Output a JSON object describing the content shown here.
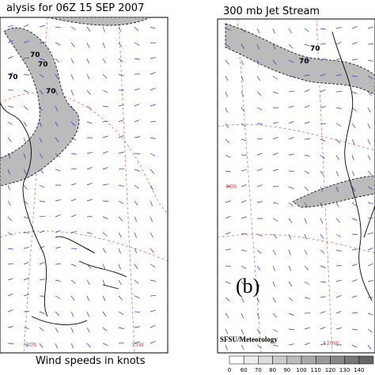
{
  "left_panel": {
    "title": "alysis for 06Z 15 SEP 2007",
    "contour_labels": [
      "70",
      "70",
      "70",
      "70"
    ],
    "grid_labels": [
      "30N",
      "75W"
    ],
    "footer": "Wind speeds in knots"
  },
  "right_panel": {
    "title": "300 mb Jet Stream",
    "panel_label": "(b)",
    "contour_labels": [
      "70",
      "70"
    ],
    "grid_labels": [
      "30N",
      "120W"
    ],
    "credit": "SFSU/Meteorology",
    "colorbar": {
      "ticks": [
        "0",
        "60",
        "70",
        "80",
        "90",
        "100",
        "110",
        "120",
        "130",
        "140"
      ]
    }
  }
}
